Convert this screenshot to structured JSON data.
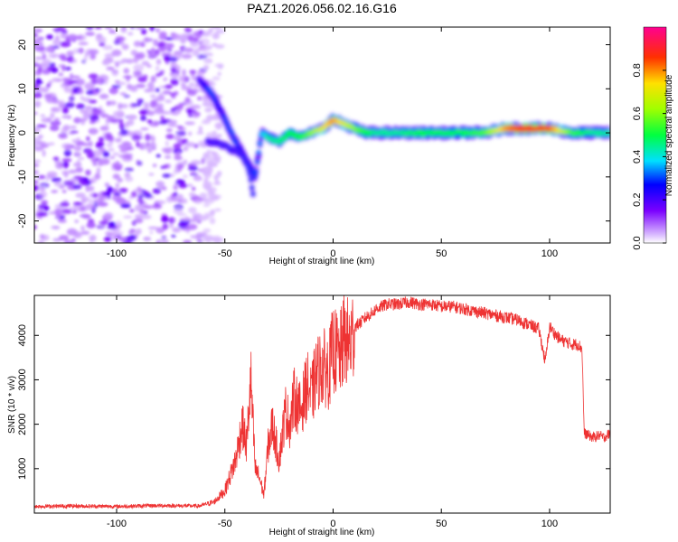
{
  "title": "PAZ1.2026.056.02.16.G16",
  "chart_data": [
    {
      "type": "heatmap",
      "xlabel": "Height of straight line (km)",
      "ylabel": "Frequency (Hz)",
      "xlim": [
        -138,
        128
      ],
      "ylim": [
        -25,
        24
      ],
      "xticks": [
        -100,
        -50,
        0,
        50,
        100
      ],
      "yticks": [
        -20,
        -10,
        0,
        10,
        20
      ],
      "colorbar": {
        "label": "Normalized spectral amplitude",
        "range": [
          0,
          1
        ],
        "ticks": [
          0.0,
          0.2,
          0.4,
          0.6,
          0.8
        ]
      },
      "ridge": {
        "x": [
          -62,
          -58,
          -55,
          -52,
          -50,
          -48,
          -45,
          -40,
          -36,
          -33,
          -30,
          -25,
          -20,
          -15,
          -10,
          -5,
          0,
          5,
          10,
          15,
          20,
          30,
          40,
          50,
          60,
          70,
          80,
          90,
          100,
          110,
          120,
          128
        ],
        "y": [
          12,
          10,
          8,
          5,
          3,
          1,
          -2,
          -6,
          -10,
          0,
          -1,
          -2,
          0,
          -1,
          0,
          1,
          3,
          2,
          1,
          0,
          0,
          0,
          0,
          0,
          0,
          0,
          1,
          1,
          1,
          0,
          0,
          0
        ],
        "amplitude": [
          0.2,
          0.3,
          0.3,
          0.25,
          0.3,
          0.3,
          0.3,
          0.25,
          0.3,
          0.35,
          0.45,
          0.45,
          0.5,
          0.5,
          0.6,
          0.7,
          0.8,
          0.7,
          0.6,
          0.5,
          0.45,
          0.45,
          0.5,
          0.5,
          0.5,
          0.55,
          0.8,
          0.9,
          0.85,
          0.55,
          0.45,
          0.45
        ]
      },
      "lower_branch": {
        "x": [
          -58,
          -54,
          -50,
          -46,
          -42,
          -39,
          -37
        ],
        "y": [
          -2,
          -2,
          -3,
          -4,
          -5,
          -8,
          -14
        ]
      },
      "noise_region_x": [
        -138,
        -60
      ]
    },
    {
      "type": "line",
      "xlabel": "Height of straight line (km)",
      "ylabel": "SNR (10 * v/v)",
      "xlim": [
        -138,
        128
      ],
      "ylim": [
        0,
        4900
      ],
      "xticks": [
        -100,
        -50,
        0,
        50,
        100
      ],
      "yticks": [
        1000,
        2000,
        3000,
        4000
      ],
      "series": [
        {
          "name": "SNR",
          "color": "#ee3333",
          "x": [
            -138,
            -120,
            -100,
            -80,
            -62,
            -55,
            -50,
            -45,
            -42,
            -40,
            -38,
            -36,
            -34,
            -32,
            -30,
            -28,
            -25,
            -22,
            -20,
            -18,
            -15,
            -12,
            -10,
            -8,
            -5,
            -2,
            0,
            3,
            5,
            8,
            10,
            13,
            15,
            18,
            20,
            25,
            30,
            35,
            40,
            45,
            50,
            55,
            60,
            65,
            70,
            75,
            80,
            85,
            90,
            95,
            98,
            100,
            103,
            105,
            108,
            110,
            113,
            115,
            116,
            118,
            120,
            123,
            125,
            128
          ],
          "y": [
            150,
            160,
            150,
            170,
            160,
            250,
            500,
            1200,
            2000,
            1500,
            3000,
            1000,
            800,
            400,
            1500,
            2000,
            1200,
            2300,
            2000,
            2600,
            2300,
            2900,
            2600,
            3100,
            3300,
            3200,
            3700,
            3500,
            3900,
            3800,
            4200,
            4300,
            4400,
            4500,
            4600,
            4700,
            4700,
            4750,
            4700,
            4700,
            4650,
            4650,
            4600,
            4550,
            4500,
            4450,
            4400,
            4350,
            4250,
            4150,
            3400,
            4200,
            4000,
            3900,
            3850,
            3800,
            3800,
            3700,
            1800,
            1750,
            1700,
            1750,
            1700,
            1800
          ]
        }
      ]
    }
  ]
}
